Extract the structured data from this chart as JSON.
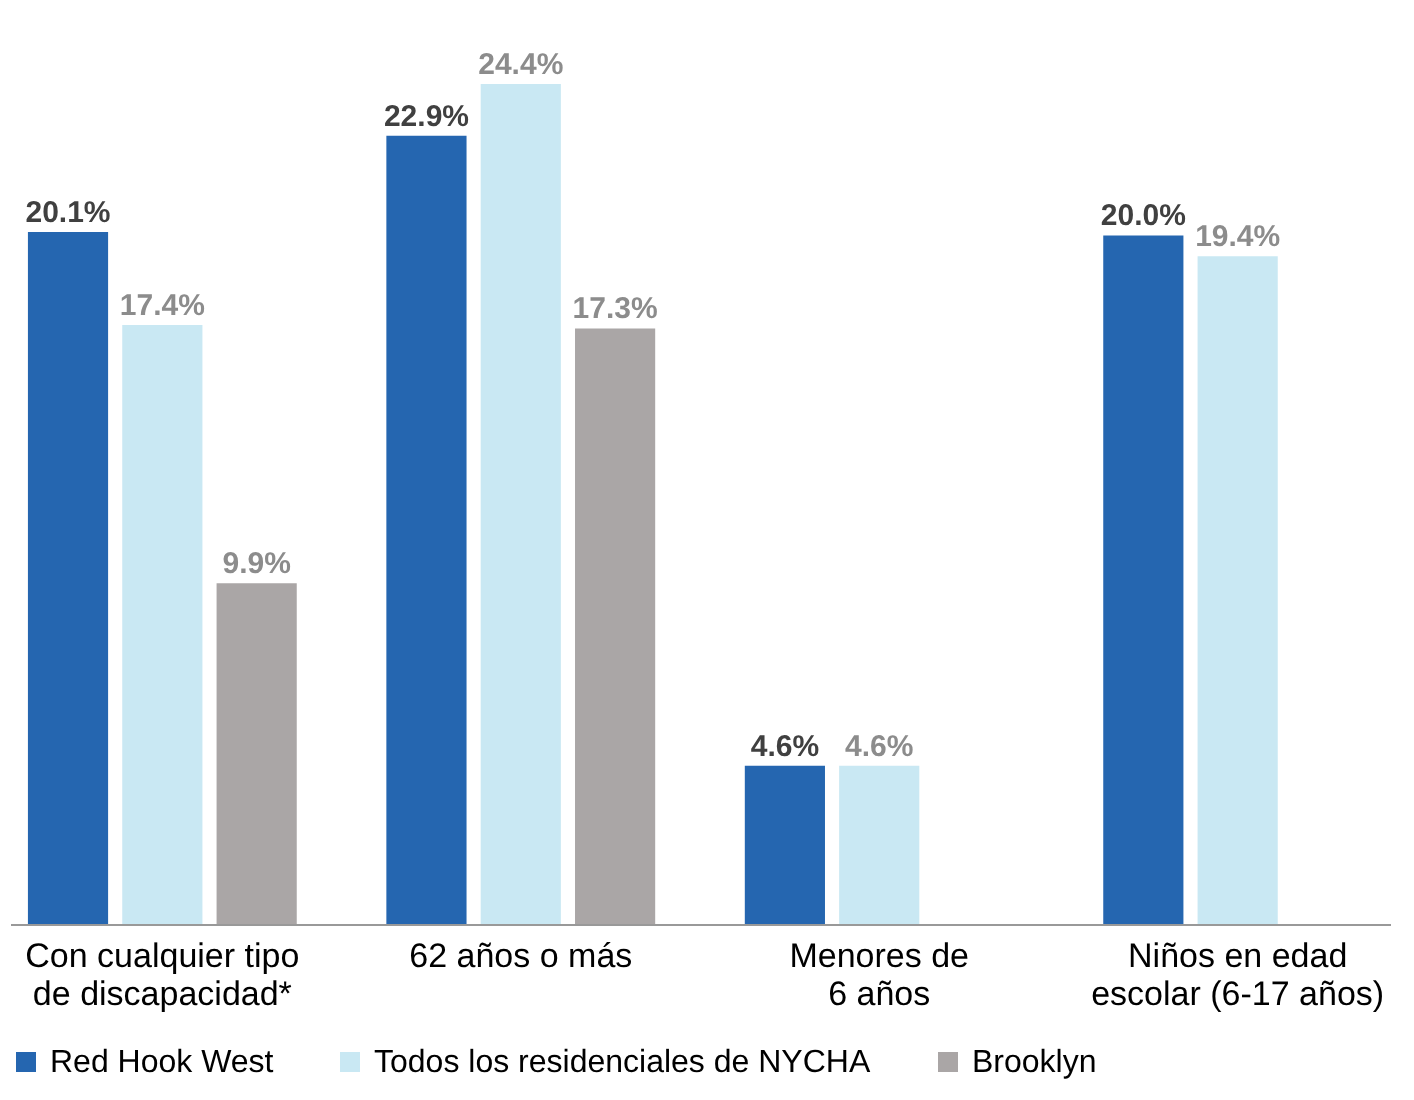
{
  "chart_data": {
    "type": "bar",
    "categories": [
      "Con cualquier tipo\nde discapacidad*",
      "62 años o más",
      "Menores de\n6 años",
      "Niños en edad\nescolar (6-17 años)"
    ],
    "series": [
      {
        "name": "Red Hook West",
        "color": "#2566b0",
        "values": [
          20.1,
          22.9,
          4.6,
          20.0
        ],
        "value_labels": [
          "20.1%",
          "22.9%",
          "4.6%",
          "20.0%"
        ]
      },
      {
        "name": "Todos los residenciales de NYCHA",
        "color": "#c9e8f3",
        "values": [
          17.4,
          24.4,
          4.6,
          19.4
        ],
        "value_labels": [
          "17.4%",
          "24.4%",
          "4.6%",
          "19.4%"
        ]
      },
      {
        "name": "Brooklyn",
        "color": "#aaa6a6",
        "values": [
          9.9,
          17.3,
          null,
          null
        ],
        "value_labels": [
          "9.9%",
          "17.3%",
          null,
          null
        ]
      }
    ],
    "legend": "bottom",
    "grid": false,
    "tick_labels": "x"
  }
}
